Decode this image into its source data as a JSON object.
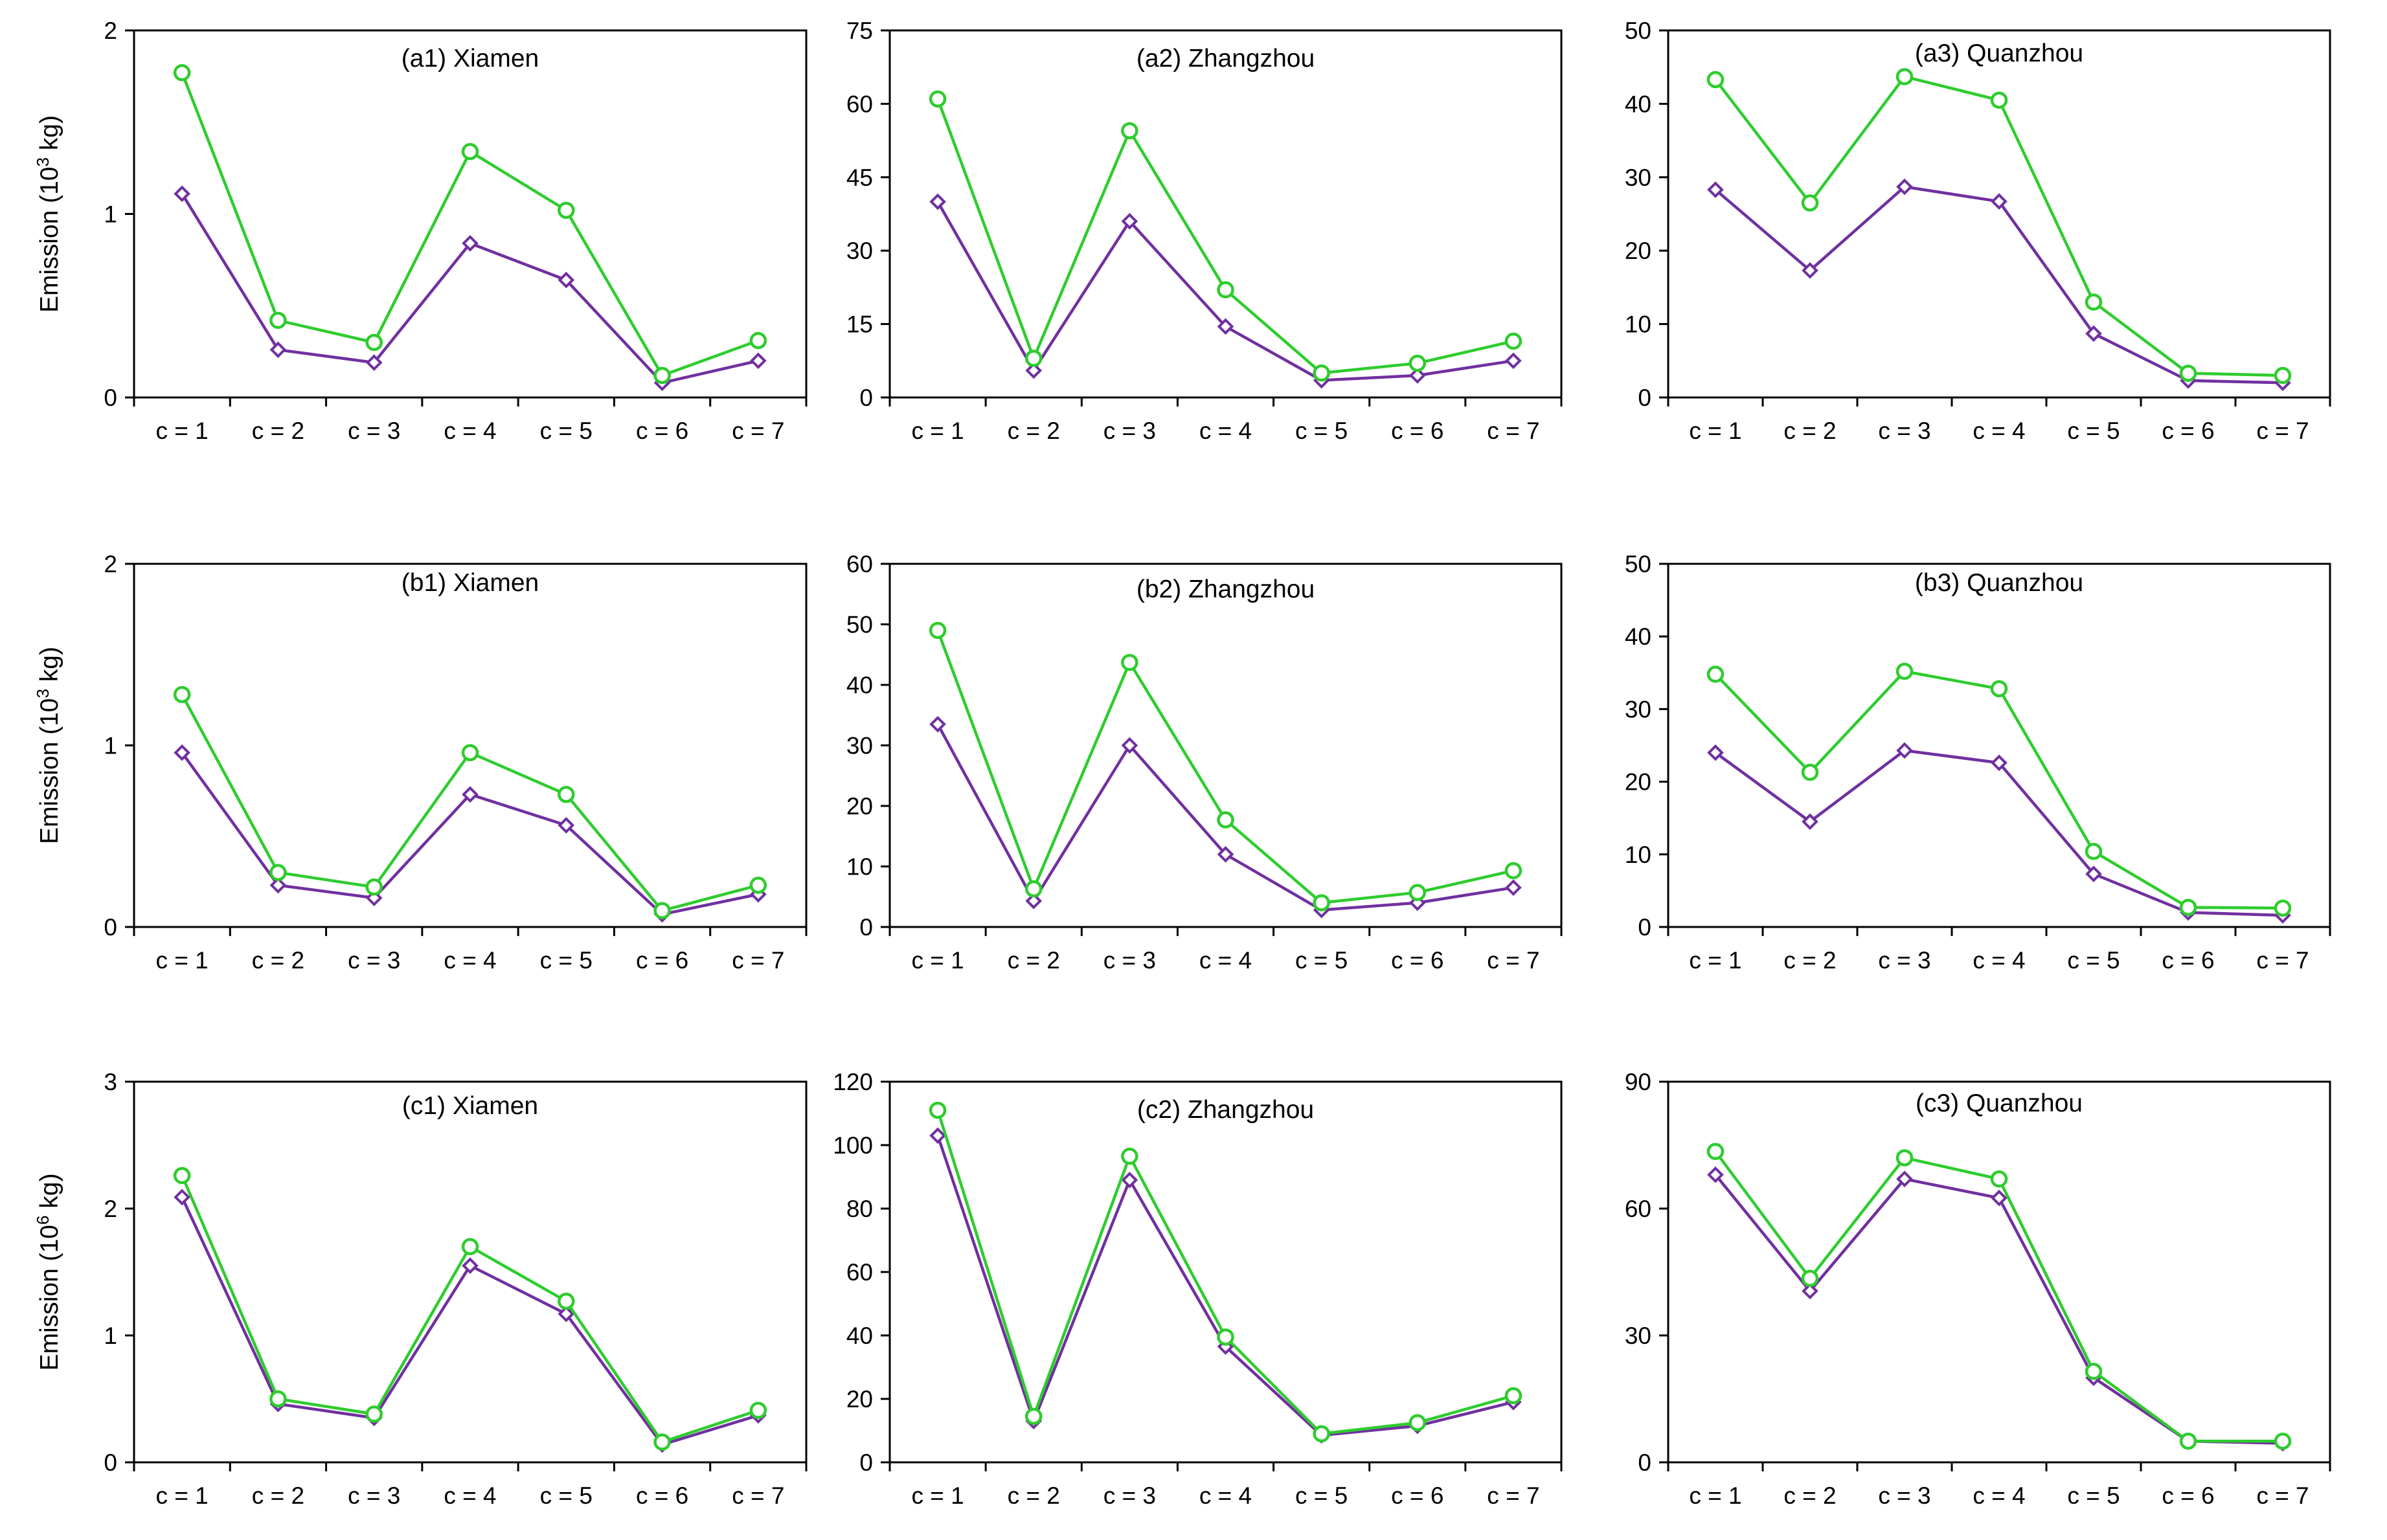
{
  "chart_data": [
    {
      "id": "a1",
      "type": "line",
      "title": "(a1) Xiamen",
      "ylabel": "Emission (10",
      "ylabel_sup": "3",
      "ylabel_tail": " kg)",
      "ylim": [
        0,
        2
      ],
      "yticks": [
        0,
        1,
        2
      ],
      "categories": [
        "c = 1",
        "c = 2",
        "c = 3",
        "c = 4",
        "c = 5",
        "c = 6",
        "c = 7"
      ],
      "series": [
        {
          "color": "#2ecc2e",
          "marker": "circle",
          "values": [
            1.77,
            0.42,
            0.3,
            1.34,
            1.02,
            0.12,
            0.31
          ]
        },
        {
          "color": "#7030a0",
          "marker": "diamond",
          "values": [
            1.11,
            0.26,
            0.19,
            0.84,
            0.64,
            0.08,
            0.2
          ]
        }
      ]
    },
    {
      "id": "a2",
      "type": "line",
      "title": "(a2) Zhangzhou",
      "ylabel": "",
      "ylim": [
        0,
        75
      ],
      "yticks": [
        0,
        15,
        30,
        45,
        60,
        75
      ],
      "categories": [
        "c = 1",
        "c = 2",
        "c = 3",
        "c = 4",
        "c = 5",
        "c = 6",
        "c = 7"
      ],
      "series": [
        {
          "color": "#2ecc2e",
          "marker": "circle",
          "values": [
            61,
            8,
            54.5,
            22,
            5,
            7,
            11.5
          ]
        },
        {
          "color": "#7030a0",
          "marker": "diamond",
          "values": [
            40,
            5.5,
            36,
            14.5,
            3.5,
            4.5,
            7.5
          ]
        }
      ]
    },
    {
      "id": "a3",
      "type": "line",
      "title": "(a3) Quanzhou",
      "ylabel": "",
      "ylim": [
        0,
        50
      ],
      "yticks": [
        0,
        10,
        20,
        30,
        40,
        50
      ],
      "categories": [
        "c = 1",
        "c = 2",
        "c = 3",
        "c = 4",
        "c = 5",
        "c = 6",
        "c = 7"
      ],
      "series": [
        {
          "color": "#2ecc2e",
          "marker": "circle",
          "values": [
            43.3,
            26.5,
            43.7,
            40.5,
            13,
            3.3,
            3
          ]
        },
        {
          "color": "#7030a0",
          "marker": "diamond",
          "values": [
            28.3,
            17.3,
            28.7,
            26.7,
            8.7,
            2.3,
            2
          ]
        }
      ]
    },
    {
      "id": "b1",
      "type": "line",
      "title": "(b1) Xiamen",
      "ylabel": "Emission (10",
      "ylabel_sup": "3",
      "ylabel_tail": " kg)",
      "ylim": [
        0,
        2
      ],
      "yticks": [
        0,
        1,
        2
      ],
      "categories": [
        "c = 1",
        "c = 2",
        "c = 3",
        "c = 4",
        "c = 5",
        "c = 6",
        "c = 7"
      ],
      "series": [
        {
          "color": "#2ecc2e",
          "marker": "circle",
          "values": [
            1.28,
            0.3,
            0.22,
            0.96,
            0.73,
            0.09,
            0.23
          ]
        },
        {
          "color": "#7030a0",
          "marker": "diamond",
          "values": [
            0.96,
            0.23,
            0.16,
            0.73,
            0.56,
            0.07,
            0.18
          ]
        }
      ]
    },
    {
      "id": "b2",
      "type": "line",
      "title": "(b2) Zhangzhou",
      "ylabel": "",
      "ylim": [
        0,
        60
      ],
      "yticks": [
        0,
        10,
        20,
        30,
        40,
        50,
        60
      ],
      "categories": [
        "c = 1",
        "c = 2",
        "c = 3",
        "c = 4",
        "c = 5",
        "c = 6",
        "c = 7"
      ],
      "series": [
        {
          "color": "#2ecc2e",
          "marker": "circle",
          "values": [
            49,
            6.3,
            43.7,
            17.7,
            4,
            5.7,
            9.3
          ]
        },
        {
          "color": "#7030a0",
          "marker": "diamond",
          "values": [
            33.5,
            4.3,
            30,
            12,
            2.8,
            4,
            6.5
          ]
        }
      ]
    },
    {
      "id": "b3",
      "type": "line",
      "title": "(b3) Quanzhou",
      "ylabel": "",
      "ylim": [
        0,
        50
      ],
      "yticks": [
        0,
        10,
        20,
        30,
        40,
        50
      ],
      "categories": [
        "c = 1",
        "c = 2",
        "c = 3",
        "c = 4",
        "c = 5",
        "c = 6",
        "c = 7"
      ],
      "series": [
        {
          "color": "#2ecc2e",
          "marker": "circle",
          "values": [
            34.8,
            21.3,
            35.2,
            32.8,
            10.4,
            2.7,
            2.6
          ]
        },
        {
          "color": "#7030a0",
          "marker": "diamond",
          "values": [
            24,
            14.5,
            24.3,
            22.6,
            7.3,
            2,
            1.6
          ]
        }
      ]
    },
    {
      "id": "c1",
      "type": "line",
      "title": "(c1) Xiamen",
      "ylabel": "Emission (10",
      "ylabel_sup": "6",
      "ylabel_tail": " kg)",
      "ylim": [
        0,
        3
      ],
      "yticks": [
        0,
        1,
        2,
        3
      ],
      "categories": [
        "c = 1",
        "c = 2",
        "c = 3",
        "c = 4",
        "c = 5",
        "c = 6",
        "c = 7"
      ],
      "series": [
        {
          "color": "#2ecc2e",
          "marker": "circle",
          "values": [
            2.26,
            0.5,
            0.38,
            1.7,
            1.27,
            0.16,
            0.41
          ]
        },
        {
          "color": "#7030a0",
          "marker": "diamond",
          "values": [
            2.09,
            0.46,
            0.35,
            1.55,
            1.17,
            0.14,
            0.37
          ]
        }
      ]
    },
    {
      "id": "c2",
      "type": "line",
      "title": "(c2) Zhangzhou",
      "ylabel": "",
      "ylim": [
        0,
        120
      ],
      "yticks": [
        0,
        20,
        40,
        60,
        80,
        100,
        120
      ],
      "categories": [
        "c = 1",
        "c = 2",
        "c = 3",
        "c = 4",
        "c = 5",
        "c = 6",
        "c = 7"
      ],
      "series": [
        {
          "color": "#2ecc2e",
          "marker": "circle",
          "values": [
            111,
            14.5,
            96.5,
            39.5,
            9,
            12.5,
            21
          ]
        },
        {
          "color": "#7030a0",
          "marker": "diamond",
          "values": [
            103,
            13,
            89,
            36.5,
            8.5,
            11.5,
            19
          ]
        }
      ]
    },
    {
      "id": "c3",
      "type": "line",
      "title": "(c3) Quanzhou",
      "ylabel": "",
      "ylim": [
        0,
        90
      ],
      "yticks": [
        0,
        30,
        60,
        90
      ],
      "categories": [
        "c = 1",
        "c = 2",
        "c = 3",
        "c = 4",
        "c = 5",
        "c = 6",
        "c = 7"
      ],
      "series": [
        {
          "color": "#2ecc2e",
          "marker": "circle",
          "values": [
            73.5,
            43.5,
            72,
            67,
            21.5,
            5,
            5
          ]
        },
        {
          "color": "#7030a0",
          "marker": "diamond",
          "values": [
            68,
            40.5,
            67,
            62.5,
            20,
            5,
            4.5
          ]
        }
      ]
    }
  ]
}
